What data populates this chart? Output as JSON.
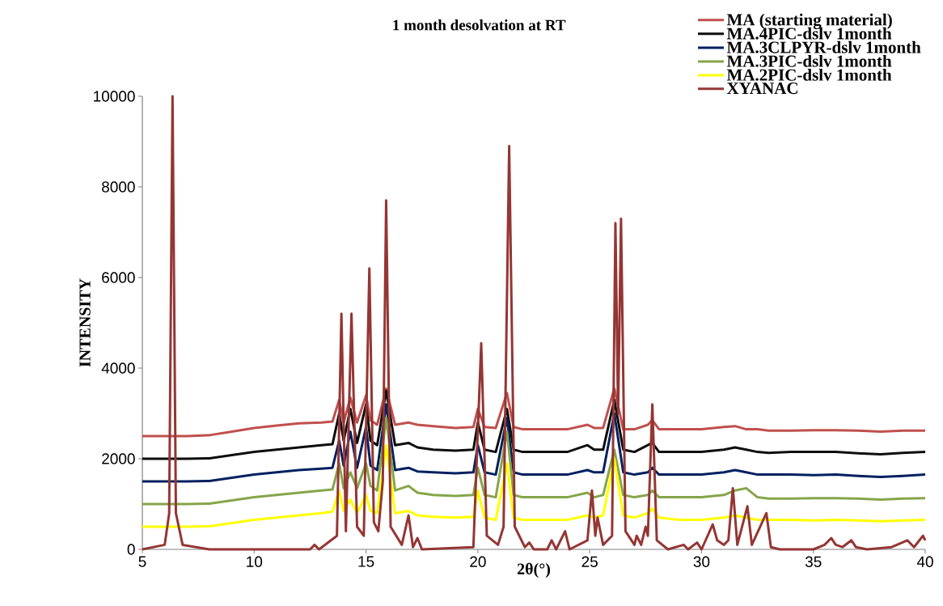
{
  "chart_data": {
    "type": "line",
    "title": "1 month desolvation at RT",
    "xlabel": "2θ(°)",
    "ylabel": "INTENSITY",
    "x": [
      5,
      7,
      8,
      9,
      10,
      11,
      12,
      13,
      13.5,
      13.8,
      14.0,
      14.3,
      14.6,
      15.0,
      15.2,
      15.5,
      15.9,
      16.3,
      16.9,
      17.3,
      18,
      19,
      19.8,
      20.0,
      20.3,
      20.8,
      21.3,
      21.6,
      22,
      23,
      24,
      24.9,
      25.2,
      25.6,
      26.1,
      26.5,
      27,
      27.6,
      27.8,
      28.1,
      29,
      30,
      31,
      31.5,
      32,
      32.5,
      33,
      34,
      35,
      36,
      37,
      38,
      39,
      40
    ],
    "series": [
      {
        "name": "MA (starting material)",
        "color": "#c0504d",
        "values": [
          2500,
          2500,
          2520,
          2600,
          2680,
          2730,
          2780,
          2800,
          2820,
          3300,
          2800,
          3350,
          2800,
          3400,
          2850,
          2750,
          3550,
          2750,
          2800,
          2750,
          2720,
          2680,
          2700,
          3100,
          2700,
          2680,
          3450,
          2700,
          2650,
          2650,
          2650,
          2750,
          2680,
          2680,
          3550,
          2650,
          2650,
          2750,
          2850,
          2650,
          2650,
          2650,
          2700,
          2720,
          2650,
          2650,
          2620,
          2620,
          2630,
          2630,
          2620,
          2600,
          2620,
          2620
        ]
      },
      {
        "name": "MA.4PIC-dslv 1month",
        "color": "#0d0d0d",
        "values": [
          2000,
          2000,
          2010,
          2080,
          2150,
          2200,
          2250,
          2300,
          2320,
          3000,
          2400,
          3100,
          2350,
          3200,
          2400,
          2300,
          3500,
          2300,
          2350,
          2250,
          2200,
          2180,
          2200,
          2800,
          2200,
          2150,
          3100,
          2200,
          2150,
          2150,
          2150,
          2300,
          2200,
          2200,
          3300,
          2200,
          2150,
          2300,
          2350,
          2150,
          2150,
          2150,
          2200,
          2250,
          2200,
          2150,
          2130,
          2150,
          2150,
          2150,
          2120,
          2100,
          2130,
          2150
        ]
      },
      {
        "name": "MA.3CLPYR-dslv 1month",
        "color": "#002060",
        "values": [
          1500,
          1500,
          1510,
          1580,
          1650,
          1700,
          1750,
          1780,
          1800,
          2400,
          1850,
          2600,
          1800,
          2700,
          1850,
          1750,
          3200,
          1750,
          1800,
          1720,
          1700,
          1680,
          1700,
          2300,
          1700,
          1650,
          2900,
          1700,
          1650,
          1650,
          1650,
          1750,
          1700,
          1700,
          3000,
          1700,
          1650,
          1700,
          1800,
          1650,
          1650,
          1650,
          1700,
          1750,
          1700,
          1650,
          1650,
          1650,
          1640,
          1650,
          1620,
          1600,
          1620,
          1650
        ]
      },
      {
        "name": "MA.3PIC-dslv 1month",
        "color": "#86a54a",
        "values": [
          1000,
          1000,
          1010,
          1080,
          1150,
          1200,
          1250,
          1300,
          1320,
          1900,
          1350,
          1700,
          1350,
          1900,
          1400,
          1300,
          2900,
          1300,
          1400,
          1250,
          1200,
          1180,
          1200,
          1800,
          1200,
          1150,
          2600,
          1200,
          1150,
          1150,
          1150,
          1250,
          1150,
          1200,
          2200,
          1200,
          1150,
          1200,
          1300,
          1150,
          1150,
          1150,
          1200,
          1300,
          1350,
          1150,
          1120,
          1120,
          1130,
          1130,
          1120,
          1100,
          1120,
          1130
        ]
      },
      {
        "name": "MA.2PIC-dslv 1month",
        "color": "#ffff00",
        "values": [
          500,
          500,
          510,
          580,
          650,
          700,
          750,
          800,
          830,
          1300,
          850,
          1100,
          800,
          1200,
          850,
          800,
          2300,
          800,
          850,
          750,
          720,
          700,
          720,
          1300,
          700,
          650,
          1900,
          700,
          650,
          650,
          650,
          750,
          700,
          750,
          2000,
          750,
          700,
          800,
          900,
          700,
          650,
          650,
          700,
          750,
          700,
          650,
          650,
          650,
          640,
          650,
          640,
          620,
          640,
          650
        ]
      },
      {
        "name": "XYANAC",
        "color": "#943634",
        "x": [
          5,
          6.0,
          6.2,
          6.35,
          6.5,
          6.8,
          8,
          12.5,
          12.7,
          12.9,
          13.7,
          13.9,
          14.1,
          14.35,
          14.6,
          14.9,
          15.15,
          15.35,
          15.55,
          15.75,
          15.9,
          16.1,
          16.6,
          16.9,
          17.1,
          17.3,
          17.5,
          19.8,
          20.15,
          20.4,
          20.9,
          21.15,
          21.4,
          21.65,
          22.1,
          22.3,
          22.5,
          23.1,
          23.3,
          23.5,
          23.9,
          24.1,
          24.9,
          25.1,
          25.25,
          25.35,
          25.6,
          26.0,
          26.15,
          26.27,
          26.4,
          26.6,
          27.0,
          27.1,
          27.3,
          27.5,
          27.6,
          27.8,
          28.0,
          28.5,
          29.2,
          29.4,
          29.8,
          30.0,
          30.5,
          30.7,
          31.0,
          31.2,
          31.4,
          31.6,
          32.05,
          32.25,
          32.9,
          33.1,
          33.5,
          35,
          35.5,
          35.8,
          36.0,
          36.3,
          36.7,
          36.9,
          37.4,
          38.5,
          39.2,
          39.5,
          39.9,
          40
        ],
        "values": [
          0,
          100,
          800,
          10000,
          800,
          100,
          0,
          0,
          100,
          0,
          300,
          5200,
          400,
          5200,
          500,
          300,
          6200,
          600,
          400,
          1500,
          7700,
          500,
          100,
          750,
          50,
          250,
          0,
          50,
          4550,
          300,
          100,
          500,
          8900,
          500,
          50,
          150,
          0,
          0,
          200,
          0,
          400,
          0,
          200,
          1300,
          300,
          700,
          100,
          300,
          7200,
          3000,
          7300,
          400,
          100,
          300,
          100,
          500,
          300,
          3200,
          200,
          0,
          100,
          0,
          150,
          0,
          550,
          200,
          100,
          200,
          1350,
          100,
          950,
          100,
          800,
          50,
          0,
          0,
          100,
          250,
          100,
          50,
          200,
          50,
          0,
          50,
          200,
          50,
          300,
          200
        ]
      }
    ],
    "xlim": [
      5,
      40
    ],
    "ylim": [
      0,
      10000
    ],
    "xticks": [
      5,
      10,
      15,
      20,
      25,
      30,
      35,
      40
    ],
    "yticks": [
      0,
      2000,
      4000,
      6000,
      8000,
      10000
    ],
    "legend": "top right"
  }
}
